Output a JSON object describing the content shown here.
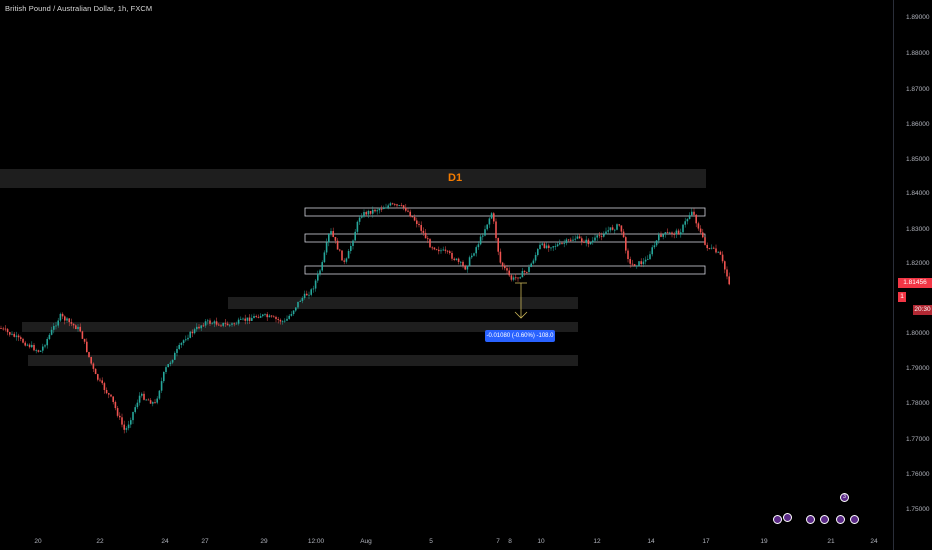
{
  "chart": {
    "title": "British Pound / Australian Dollar, 1h, FXCM",
    "zone_label": "D1",
    "measure_label": "-0.01080 (-0.60%) -108.0",
    "price_label": "1.81456",
    "countdown_label": "20:30",
    "partial_label": "1",
    "y_ticks": [
      "1.89000",
      "1.88000",
      "1.87000",
      "1.86000",
      "1.85000",
      "1.84000",
      "1.83000",
      "1.82000",
      "1.80000",
      "1.79000",
      "1.78000",
      "1.77000",
      "1.76000",
      "1.75000"
    ],
    "x_ticks": [
      "20",
      "22",
      "24",
      "27",
      "29",
      "12:00",
      "Aug",
      "5",
      "7",
      "8",
      "10",
      "12",
      "14",
      "17",
      "19",
      "21",
      "24"
    ],
    "event_icons": [
      "flag-event",
      "flag-event",
      "flag-event",
      "flag-event",
      "flag-event",
      "flag-event"
    ],
    "event_badges": [
      "",
      "",
      "",
      "",
      "3",
      ""
    ],
    "colors": {
      "background": "#000000",
      "bull": "#26a69a",
      "bear": "#ef5350",
      "zone": "#1c1c1c",
      "range_box": "#d1d4dc",
      "label_orange": "#f57c00",
      "measure_blue": "#2962ff",
      "price_red": "#f23645"
    }
  }
}
